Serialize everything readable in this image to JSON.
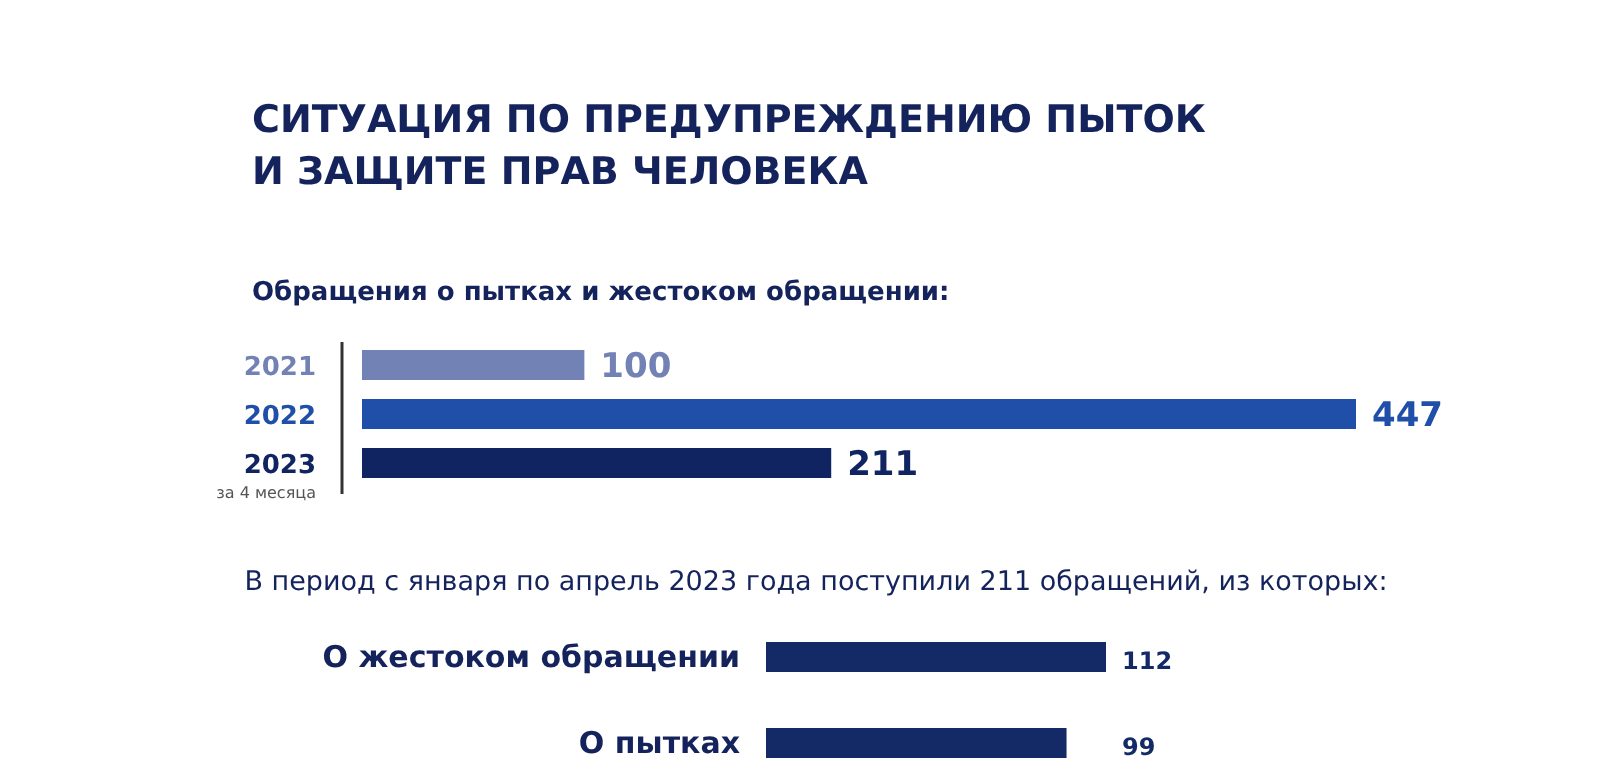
{
  "chart_data": [
    {
      "type": "bar",
      "orientation": "horizontal",
      "title": "СИТУАЦИЯ ПО ПРЕДУПРЕЖДЕНИЮ ПЫТОК\nИ ЗАЩИТЕ ПРАВ ЧЕЛОВЕКА",
      "subtitle": "Обращения о пытках и жестоком обращении:",
      "categories": [
        "2021",
        "2022",
        "2023"
      ],
      "values": [
        100,
        447,
        211
      ],
      "colors": [
        "#7282b4",
        "#1f4fa8",
        "#0f2460"
      ],
      "data_labels": true,
      "annotations": [
        "за 4 месяца"
      ]
    },
    {
      "type": "bar",
      "orientation": "horizontal",
      "title": "В период с января по апрель 2023 года поступили 211 обращений, из которых:",
      "categories": [
        "О жестоком обращении",
        "О пытках"
      ],
      "values": [
        112,
        99
      ],
      "colors": [
        "#132a66",
        "#132a66"
      ],
      "data_labels": true
    }
  ]
}
